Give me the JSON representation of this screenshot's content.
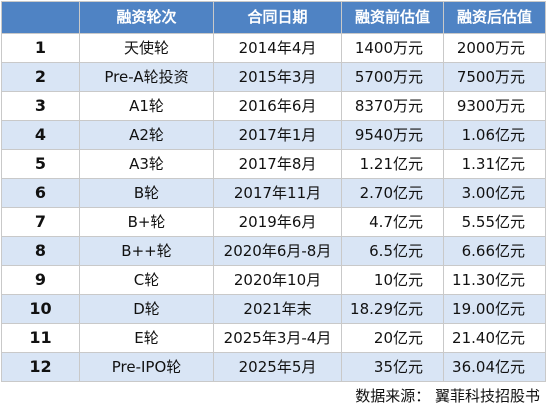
{
  "table": {
    "headers": [
      "",
      "融资轮次",
      "合同日期",
      "融资前估值",
      "融资后估值"
    ],
    "rows": [
      [
        "1",
        "天使轮",
        "2014年4月",
        "1400万元",
        "2000万元"
      ],
      [
        "2",
        "Pre-A轮投资",
        "2015年3月",
        "5700万元",
        "7500万元"
      ],
      [
        "3",
        "A1轮",
        "2016年6月",
        "8370万元",
        "9300万元"
      ],
      [
        "4",
        "A2轮",
        "2017年1月",
        "9540万元",
        "1.06亿元"
      ],
      [
        "5",
        "A3轮",
        "2017年8月",
        "1.21亿元",
        "1.31亿元"
      ],
      [
        "6",
        "B轮",
        "2017年11月",
        "2.70亿元",
        "3.00亿元"
      ],
      [
        "7",
        "B+轮",
        "2019年6月",
        "4.7亿元",
        "5.55亿元"
      ],
      [
        "8",
        "B++轮",
        "2020年6月-8月",
        "6.5亿元",
        "6.66亿元"
      ],
      [
        "9",
        "C轮",
        "2020年10月",
        "10亿元",
        "11.30亿元"
      ],
      [
        "10",
        "D轮",
        "2021年末",
        "18.29亿元",
        "19.00亿元"
      ],
      [
        "11",
        "E轮",
        "2025年3月-4月",
        "20亿元",
        "21.40亿元"
      ],
      [
        "12",
        "Pre-IPO轮",
        "2025年5月",
        "35亿元",
        "36.04亿元"
      ]
    ]
  },
  "source": "数据来源：  翼菲科技招股书",
  "colors": {
    "header_bg": "#4f83c4",
    "header_text": "#ffffff",
    "stripe": "#d9e5f5",
    "border": "#c9c9c9"
  }
}
